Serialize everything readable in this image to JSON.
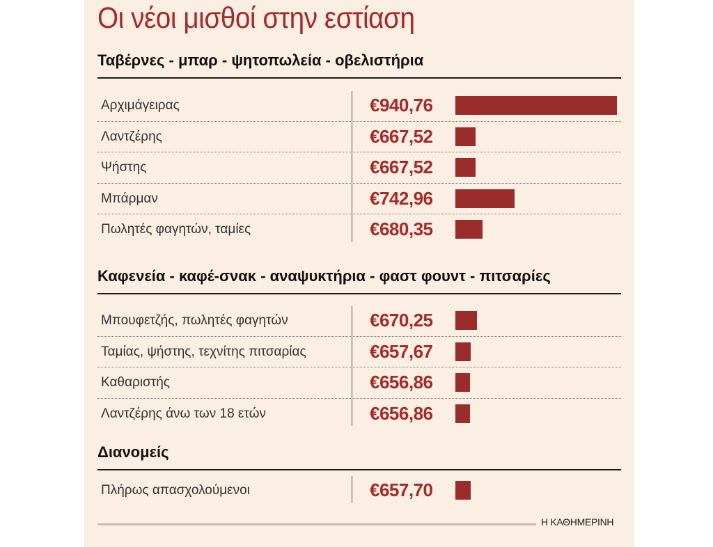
{
  "title": "Οι νέοι μισθοί στην εστίαση",
  "source": "Η ΚΑΘΗΜΕΡΙΝΗ",
  "colors": {
    "accent": "#a52a2a",
    "bar": "#9b2c2c",
    "background": "#fbeee2"
  },
  "chart_data": {
    "type": "bar",
    "orientation": "horizontal",
    "title": "Οι νέοι μισθοί στην εστίαση",
    "sections": [
      {
        "title": "Ταβέρνες - μπαρ - ψητοπωλεία - οβελιστήρια",
        "rows": [
          {
            "label": "Αρχιμάγειρας",
            "value": 940.76,
            "value_label": "€940,76"
          },
          {
            "label": "Λαντζέρης",
            "value": 667.52,
            "value_label": "€667,52"
          },
          {
            "label": "Ψήστης",
            "value": 667.52,
            "value_label": "€667,52"
          },
          {
            "label": "Μπάρμαν",
            "value": 742.96,
            "value_label": "€742,96"
          },
          {
            "label": "Πωλητές φαγητών, ταμίες",
            "value": 680.35,
            "value_label": "€680,35"
          }
        ]
      },
      {
        "title": "Καφενεία - καφέ-σνακ - αναψυκτήρια - φαστ φουντ - πιτσαρίες",
        "rows": [
          {
            "label": "Μπουφετζής, πωλητές φαγητών",
            "value": 670.25,
            "value_label": "€670,25"
          },
          {
            "label": "Ταμίας, ψήστης, τεχνίτης πιτσαρίας",
            "value": 657.67,
            "value_label": "€657,67"
          },
          {
            "label": "Καθαριστής",
            "value": 656.86,
            "value_label": "€656,86"
          },
          {
            "label": "Λαντζέρης άνω των 18 ετών",
            "value": 656.86,
            "value_label": "€656,86"
          }
        ]
      },
      {
        "title": "Διανομείς",
        "rows": [
          {
            "label": "Πλήρως απασχολούμενοι",
            "value": 657.7,
            "value_label": "€657,70"
          }
        ]
      }
    ],
    "grid": false,
    "legend": "none"
  }
}
